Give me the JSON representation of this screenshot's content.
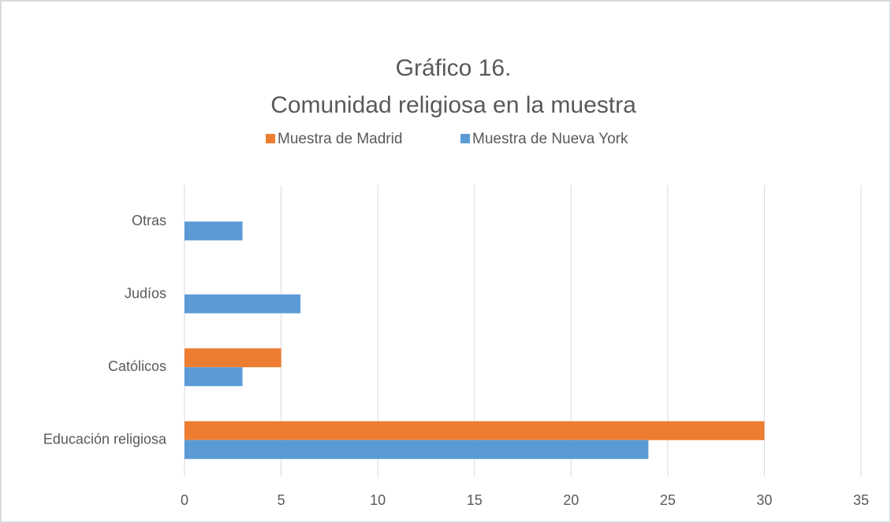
{
  "chart_data": {
    "type": "hbar",
    "title": [
      "Gráfico 16.",
      "Comunidad religiosa en la muestra"
    ],
    "categories": [
      "Educación religiosa",
      "Católicos",
      "Judíos",
      "Otras"
    ],
    "series": [
      {
        "name": "Muestra de Madrid",
        "color": "#ed7d31",
        "values": [
          30,
          5,
          0,
          0
        ]
      },
      {
        "name": "Muestra de Nueva York",
        "color": "#5b9bd5",
        "values": [
          24,
          3,
          6,
          3
        ]
      }
    ],
    "xlim": [
      0,
      35
    ],
    "xticks": [
      0,
      5,
      10,
      15,
      20,
      25,
      30,
      35
    ],
    "grid": true,
    "legend": "top"
  }
}
